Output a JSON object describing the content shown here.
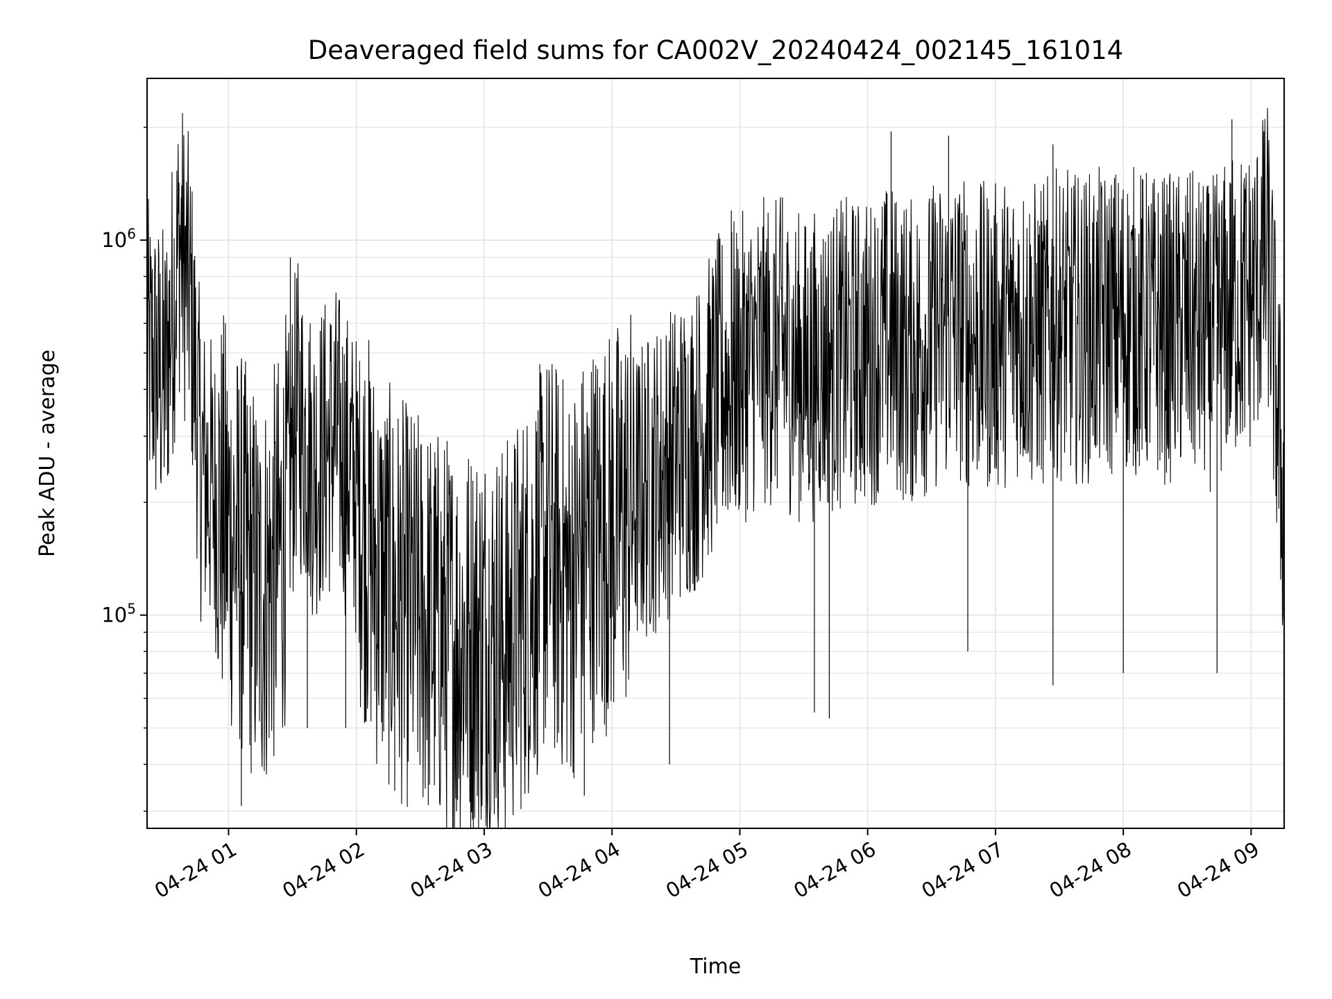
{
  "chart_data": {
    "type": "line",
    "title": "Deaveraged field sums for CA002V_20240424_002145_161014",
    "xlabel": "Time",
    "ylabel": "Peak ADU - average",
    "y_scale": "log",
    "ylim": [
      27000,
      2700000
    ],
    "xlim": [
      "2024-04-24 00:21:45",
      "2024-04-24 09:15:30"
    ],
    "grid": true,
    "line_color": "#000000",
    "grid_color": "#e6e6e6",
    "x_ticks": [
      {
        "label": "04-24 01",
        "value": "2024-04-24 01:00"
      },
      {
        "label": "04-24 02",
        "value": "2024-04-24 02:00"
      },
      {
        "label": "04-24 03",
        "value": "2024-04-24 03:00"
      },
      {
        "label": "04-24 04",
        "value": "2024-04-24 04:00"
      },
      {
        "label": "04-24 05",
        "value": "2024-04-24 05:00"
      },
      {
        "label": "04-24 06",
        "value": "2024-04-24 06:00"
      },
      {
        "label": "04-24 07",
        "value": "2024-04-24 07:00"
      },
      {
        "label": "04-24 08",
        "value": "2024-04-24 08:00"
      },
      {
        "label": "04-24 09",
        "value": "2024-04-24 09:00"
      }
    ],
    "y_ticks": [
      {
        "base": "10",
        "exp": "5",
        "value": 100000
      },
      {
        "base": "10",
        "exp": "6",
        "value": 1000000
      }
    ],
    "series": [
      {
        "points": [
          [
            "2024-04-24 00:21:45",
            500000
          ],
          [
            "2024-04-24 00:30",
            420000
          ],
          [
            "2024-04-24 00:37",
            1000000
          ],
          [
            "2024-04-24 00:42",
            700000
          ],
          [
            "2024-04-24 00:47",
            250000
          ],
          [
            "2024-04-24 00:55",
            200000
          ],
          [
            "2024-04-24 01:05",
            150000
          ],
          [
            "2024-04-24 01:15",
            110000
          ],
          [
            "2024-04-24 01:25",
            150000
          ],
          [
            "2024-04-24 01:32",
            350000
          ],
          [
            "2024-04-24 01:40",
            250000
          ],
          [
            "2024-04-24 01:50",
            300000
          ],
          [
            "2024-04-24 02:00",
            220000
          ],
          [
            "2024-04-24 02:10",
            130000
          ],
          [
            "2024-04-24 02:20",
            110000
          ],
          [
            "2024-04-24 02:30",
            100000
          ],
          [
            "2024-04-24 02:40",
            90000
          ],
          [
            "2024-04-24 02:50",
            85000
          ],
          [
            "2024-04-24 03:00",
            90000
          ],
          [
            "2024-04-24 03:10",
            85000
          ],
          [
            "2024-04-24 03:20",
            110000
          ],
          [
            "2024-04-24 03:30",
            150000
          ],
          [
            "2024-04-24 03:40",
            120000
          ],
          [
            "2024-04-24 03:50",
            160000
          ],
          [
            "2024-04-24 04:00",
            170000
          ],
          [
            "2024-04-24 04:10",
            200000
          ],
          [
            "2024-04-24 04:20",
            230000
          ],
          [
            "2024-04-24 04:30",
            270000
          ],
          [
            "2024-04-24 04:40",
            300000
          ],
          [
            "2024-04-24 04:50",
            400000
          ],
          [
            "2024-04-24 05:00",
            450000
          ],
          [
            "2024-04-24 05:10",
            500000
          ],
          [
            "2024-04-24 05:20",
            500000
          ],
          [
            "2024-04-24 05:30",
            450000
          ],
          [
            "2024-04-24 05:40",
            480000
          ],
          [
            "2024-04-24 05:50",
            500000
          ],
          [
            "2024-04-24 06:00",
            500000
          ],
          [
            "2024-04-24 06:10",
            550000
          ],
          [
            "2024-04-24 06:20",
            500000
          ],
          [
            "2024-04-24 06:30",
            550000
          ],
          [
            "2024-04-24 06:40",
            600000
          ],
          [
            "2024-04-24 06:50",
            550000
          ],
          [
            "2024-04-24 07:00",
            550000
          ],
          [
            "2024-04-24 07:10",
            600000
          ],
          [
            "2024-04-24 07:20",
            550000
          ],
          [
            "2024-04-24 07:30",
            600000
          ],
          [
            "2024-04-24 07:40",
            580000
          ],
          [
            "2024-04-24 07:50",
            600000
          ],
          [
            "2024-04-24 08:00",
            620000
          ],
          [
            "2024-04-24 08:10",
            600000
          ],
          [
            "2024-04-24 08:20",
            580000
          ],
          [
            "2024-04-24 08:30",
            600000
          ],
          [
            "2024-04-24 08:40",
            550000
          ],
          [
            "2024-04-24 08:50",
            650000
          ],
          [
            "2024-04-24 09:00",
            700000
          ],
          [
            "2024-04-24 09:08",
            900000
          ],
          [
            "2024-04-24 09:15",
            200000
          ]
        ]
      }
    ],
    "extreme_points": [
      [
        "2024-04-24 00:38",
        1400000
      ],
      [
        "2024-04-24 00:39",
        1450000
      ],
      [
        "2024-04-24 01:06",
        31000
      ],
      [
        "2024-04-24 01:29",
        900000
      ],
      [
        "2024-04-24 01:37",
        50000
      ],
      [
        "2024-04-24 01:55",
        50000
      ],
      [
        "2024-04-24 02:18",
        34000
      ],
      [
        "2024-04-24 02:47",
        30000
      ],
      [
        "2024-04-24 02:59",
        31000
      ],
      [
        "2024-04-24 03:47",
        33000
      ],
      [
        "2024-04-24 04:27",
        40000
      ],
      [
        "2024-04-24 04:56",
        1200000
      ],
      [
        "2024-04-24 05:20",
        1300000
      ],
      [
        "2024-04-24 05:35",
        55000
      ],
      [
        "2024-04-24 05:42",
        53000
      ],
      [
        "2024-04-24 06:11",
        1950000
      ],
      [
        "2024-04-24 06:38",
        1900000
      ],
      [
        "2024-04-24 06:47",
        80000
      ],
      [
        "2024-04-24 07:27",
        1800000
      ],
      [
        "2024-04-24 07:27",
        65000
      ],
      [
        "2024-04-24 08:00",
        70000
      ],
      [
        "2024-04-24 08:51",
        2100000
      ],
      [
        "2024-04-24 08:44",
        70000
      ],
      [
        "2024-04-24 09:06",
        1950000
      ]
    ]
  }
}
